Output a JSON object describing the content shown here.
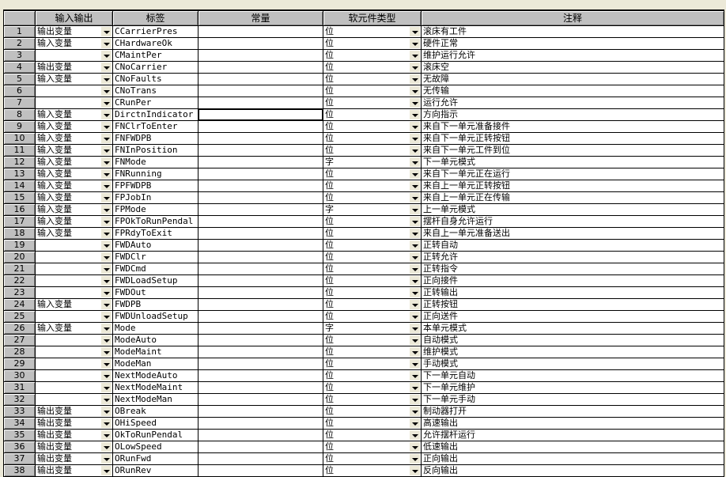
{
  "headers": [
    "",
    "输入输出",
    "标签",
    "常量",
    "软元件类型",
    "注释"
  ],
  "rows": [
    {
      "n": "1",
      "io": "输出变量",
      "tag": "CCarrierPres",
      "const": "",
      "type": "位",
      "comment": "滚床有工件"
    },
    {
      "n": "2",
      "io": "输入变量",
      "tag": "CHardwareOk",
      "const": "",
      "type": "位",
      "comment": "硬件正常"
    },
    {
      "n": "3",
      "io": "",
      "tag": "CMaintPer",
      "const": "",
      "type": "位",
      "comment": "维护运行允许"
    },
    {
      "n": "4",
      "io": "输出变量",
      "tag": "CNoCarrier",
      "const": "",
      "type": "位",
      "comment": "滚床空"
    },
    {
      "n": "5",
      "io": "输入变量",
      "tag": "CNoFaults",
      "const": "",
      "type": "位",
      "comment": "无故障"
    },
    {
      "n": "6",
      "io": "",
      "tag": "CNoTrans",
      "const": "",
      "type": "位",
      "comment": "无传输"
    },
    {
      "n": "7",
      "io": "",
      "tag": "CRunPer",
      "const": "",
      "type": "位",
      "comment": "运行允许"
    },
    {
      "n": "8",
      "io": "输入变量",
      "tag": "DirctnIndicator",
      "const": "",
      "type": "位",
      "comment": "方向指示",
      "selected": true
    },
    {
      "n": "9",
      "io": "输入变量",
      "tag": "FNClrToEnter",
      "const": "",
      "type": "位",
      "comment": "来自下一单元准备接件"
    },
    {
      "n": "10",
      "io": "输入变量",
      "tag": "FNFWDPB",
      "const": "",
      "type": "位",
      "comment": "来自下一单元正转按钮"
    },
    {
      "n": "11",
      "io": "输入变量",
      "tag": "FNInPosition",
      "const": "",
      "type": "位",
      "comment": "来自下一单元工件到位"
    },
    {
      "n": "12",
      "io": "输入变量",
      "tag": "FNMode",
      "const": "",
      "type": "字",
      "comment": "下一单元模式"
    },
    {
      "n": "13",
      "io": "输入变量",
      "tag": "FNRunning",
      "const": "",
      "type": "位",
      "comment": "来自下一单元正在运行"
    },
    {
      "n": "14",
      "io": "输入变量",
      "tag": "FPFWDPB",
      "const": "",
      "type": "位",
      "comment": "来自上一单元正转按钮"
    },
    {
      "n": "15",
      "io": "输入变量",
      "tag": "FPJobIn",
      "const": "",
      "type": "位",
      "comment": "来自上一单元正在传输"
    },
    {
      "n": "16",
      "io": "输入变量",
      "tag": "FPMode",
      "const": "",
      "type": "字",
      "comment": "上一单元模式"
    },
    {
      "n": "17",
      "io": "输入变量",
      "tag": "FPOkToRunPendal",
      "const": "",
      "type": "位",
      "comment": "摆杆自身允许运行"
    },
    {
      "n": "18",
      "io": "输入变量",
      "tag": "FPRdyToExit",
      "const": "",
      "type": "位",
      "comment": "来自上一单元准备送出"
    },
    {
      "n": "19",
      "io": "",
      "tag": "FWDAuto",
      "const": "",
      "type": "位",
      "comment": "正转自动"
    },
    {
      "n": "20",
      "io": "",
      "tag": "FWDClr",
      "const": "",
      "type": "位",
      "comment": "正转允许"
    },
    {
      "n": "21",
      "io": "",
      "tag": "FWDCmd",
      "const": "",
      "type": "位",
      "comment": "正转指令"
    },
    {
      "n": "22",
      "io": "",
      "tag": "FWDLoadSetup",
      "const": "",
      "type": "位",
      "comment": "正向接件"
    },
    {
      "n": "23",
      "io": "",
      "tag": "FWDOut",
      "const": "",
      "type": "位",
      "comment": "正转输出"
    },
    {
      "n": "24",
      "io": "输入变量",
      "tag": "FWDPB",
      "const": "",
      "type": "位",
      "comment": "正转按钮"
    },
    {
      "n": "25",
      "io": "",
      "tag": "FWDUnloadSetup",
      "const": "",
      "type": "位",
      "comment": "正向送件"
    },
    {
      "n": "26",
      "io": "输入变量",
      "tag": "Mode",
      "const": "",
      "type": "字",
      "comment": "本单元模式"
    },
    {
      "n": "27",
      "io": "",
      "tag": "ModeAuto",
      "const": "",
      "type": "位",
      "comment": "自动模式"
    },
    {
      "n": "28",
      "io": "",
      "tag": "ModeMaint",
      "const": "",
      "type": "位",
      "comment": "维护模式"
    },
    {
      "n": "29",
      "io": "",
      "tag": "ModeMan",
      "const": "",
      "type": "位",
      "comment": "手动模式"
    },
    {
      "n": "30",
      "io": "",
      "tag": "NextModeAuto",
      "const": "",
      "type": "位",
      "comment": "下一单元自动"
    },
    {
      "n": "31",
      "io": "",
      "tag": "NextModeMaint",
      "const": "",
      "type": "位",
      "comment": "下一单元维护"
    },
    {
      "n": "32",
      "io": "",
      "tag": "NextModeMan",
      "const": "",
      "type": "位",
      "comment": "下一单元手动"
    },
    {
      "n": "33",
      "io": "输出变量",
      "tag": "OBreak",
      "const": "",
      "type": "位",
      "comment": "制动器打开"
    },
    {
      "n": "34",
      "io": "输出变量",
      "tag": "OHiSpeed",
      "const": "",
      "type": "位",
      "comment": "高速输出"
    },
    {
      "n": "35",
      "io": "输出变量",
      "tag": "OkToRunPendal",
      "const": "",
      "type": "位",
      "comment": "允许摆杆运行"
    },
    {
      "n": "36",
      "io": "输出变量",
      "tag": "OLowSpeed",
      "const": "",
      "type": "位",
      "comment": "低速输出"
    },
    {
      "n": "37",
      "io": "输出变量",
      "tag": "ORunFwd",
      "const": "",
      "type": "位",
      "comment": "正向输出"
    },
    {
      "n": "38",
      "io": "输出变量",
      "tag": "ORunRev",
      "const": "",
      "type": "位",
      "comment": "反向输出"
    }
  ]
}
